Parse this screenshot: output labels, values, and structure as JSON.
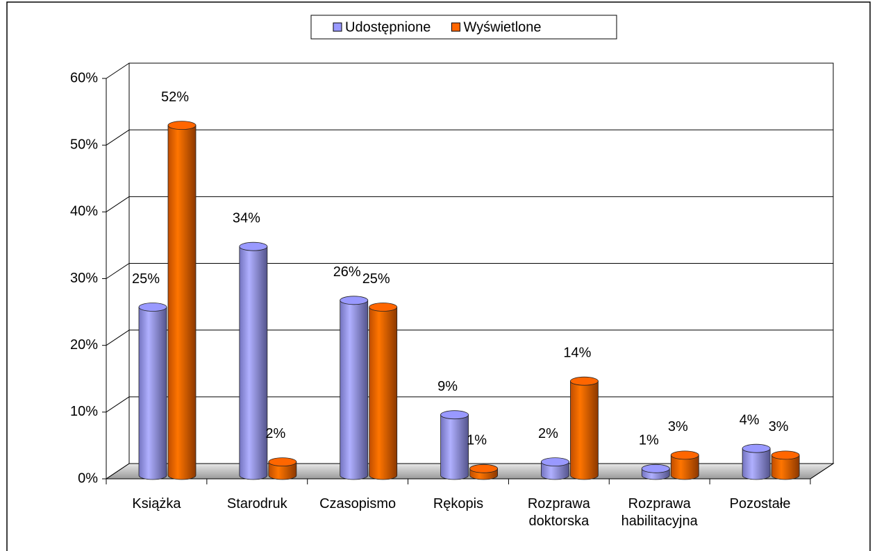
{
  "chart_data": {
    "type": "bar3d",
    "categories": [
      "Książka",
      "Starodruk",
      "Czasopismo",
      "Rękopis",
      "Rozprawa doktorska",
      "Rozprawa habilitacyjna",
      "Pozostałe"
    ],
    "series": [
      {
        "name": "Udostępnione",
        "color": "#9999ff",
        "values": [
          25,
          34,
          26,
          9,
          2,
          1,
          4
        ],
        "value_labels": [
          "25%",
          "34%",
          "26%",
          "9%",
          "2%",
          "1%",
          "4%"
        ]
      },
      {
        "name": "Wyświetlone",
        "color": "#ff6600",
        "values": [
          52,
          2,
          25,
          1,
          14,
          3,
          3
        ],
        "value_labels": [
          "52%",
          "2%",
          "25%",
          "1%",
          "14%",
          "3%",
          "3%"
        ]
      }
    ],
    "ylim": [
      0,
      60
    ],
    "yticks": [
      {
        "value": 0,
        "label": "0%"
      },
      {
        "value": 10,
        "label": "10%"
      },
      {
        "value": 20,
        "label": "20%"
      },
      {
        "value": 30,
        "label": "30%"
      },
      {
        "value": 40,
        "label": "40%"
      },
      {
        "value": 50,
        "label": "50%"
      },
      {
        "value": 60,
        "label": "60%"
      }
    ],
    "grid": true,
    "legend": "top"
  }
}
